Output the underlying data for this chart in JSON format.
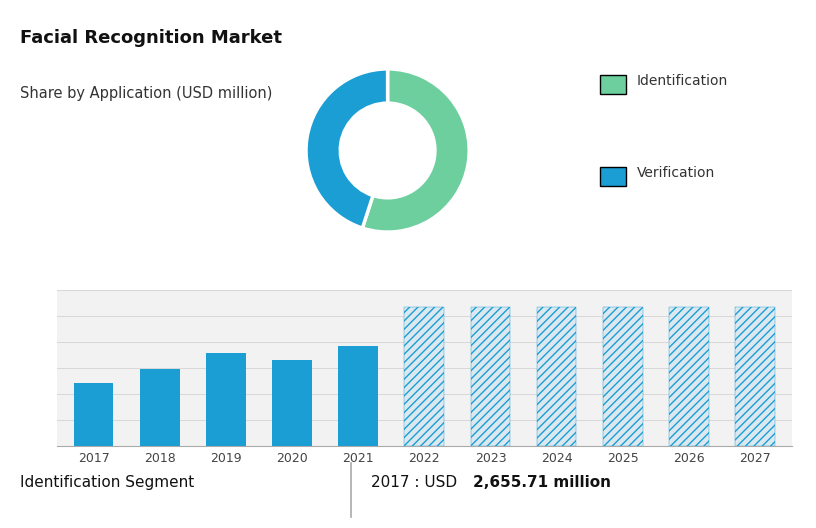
{
  "title": "Facial Recognition Market",
  "subtitle": "Share by Application (USD million)",
  "top_bg_color": "#cdd8e3",
  "bottom_bg_color": "#f2f2f2",
  "white_bg": "#ffffff",
  "bar_years": [
    "2017",
    "2018",
    "2019",
    "2020",
    "2021",
    "2022",
    "2023",
    "2024",
    "2025",
    "2026",
    "2027"
  ],
  "bar_values_solid": [
    2655.71,
    3200,
    3900,
    3600,
    4200
  ],
  "bar_value_hatched": 5800,
  "n_solid": 5,
  "n_hatched": 6,
  "bar_color_solid": "#1a9ed4",
  "bar_hatch_color": "#1a9ed4",
  "bar_hatch_bg": "#dce8f0",
  "donut_values": [
    55,
    45
  ],
  "donut_colors": [
    "#6dcf9e",
    "#1a9ed4"
  ],
  "donut_labels": [
    "Identification",
    "Verification"
  ],
  "footer_left": "Identification Segment",
  "footer_right_prefix": "2017 : USD ",
  "footer_right_bold": "2,655.71 million",
  "grid_color": "#d8d8d8",
  "title_fontsize": 13,
  "subtitle_fontsize": 10.5,
  "bar_chart_ylim": [
    0,
    6500
  ],
  "legend_marker_color_id": "#6dcf9e",
  "legend_marker_color_ver": "#1a9ed4"
}
